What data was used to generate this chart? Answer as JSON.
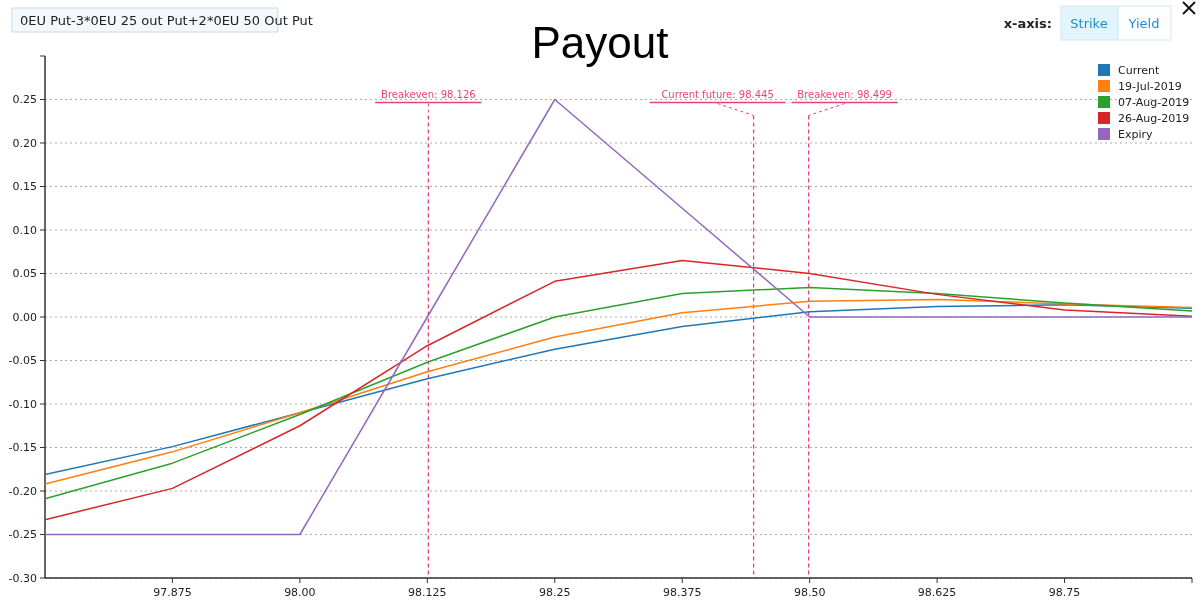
{
  "chart_data": {
    "type": "line",
    "title": "Payout",
    "x": [
      97.75,
      97.875,
      98.0,
      98.125,
      98.25,
      98.375,
      98.5,
      98.625,
      98.75,
      98.875
    ],
    "series": [
      {
        "name": "Current",
        "color": "#1f77b4",
        "values": [
          -0.181,
          -0.149,
          -0.11,
          -0.071,
          -0.037,
          -0.011,
          0.006,
          0.012,
          0.014,
          0.01
        ]
      },
      {
        "name": "19-Jul-2019",
        "color": "#ff7f0e",
        "values": [
          -0.192,
          -0.155,
          -0.11,
          -0.063,
          -0.023,
          0.005,
          0.018,
          0.02,
          0.015,
          0.011
        ]
      },
      {
        "name": "07-Aug-2019",
        "color": "#2ca02c",
        "values": [
          -0.209,
          -0.168,
          -0.112,
          -0.052,
          0.0,
          0.027,
          0.034,
          0.027,
          0.016,
          0.007
        ]
      },
      {
        "name": "26-Aug-2019",
        "color": "#d62728",
        "values": [
          -0.233,
          -0.197,
          -0.125,
          -0.033,
          0.041,
          0.065,
          0.05,
          0.026,
          0.008,
          0.001
        ]
      },
      {
        "name": "Expiry",
        "color": "#9467bd",
        "values": [
          -0.25,
          -0.25,
          -0.25,
          0.0,
          0.25,
          0.125,
          0.0,
          0.0,
          0.0,
          0.0
        ]
      }
    ],
    "xlim": [
      97.75,
      98.875
    ],
    "xticks": [
      {
        "value": 97.875,
        "label": "97.875"
      },
      {
        "value": 98.0,
        "label": "98.00"
      },
      {
        "value": 98.125,
        "label": "98.125"
      },
      {
        "value": 98.25,
        "label": "98.25"
      },
      {
        "value": 98.375,
        "label": "98.375"
      },
      {
        "value": 98.5,
        "label": "98.50"
      },
      {
        "value": 98.625,
        "label": "98.625"
      },
      {
        "value": 98.75,
        "label": "98.75"
      }
    ],
    "ylim": [
      -0.3,
      0.3
    ],
    "yticks": [
      {
        "value": -0.3,
        "label": "-0.30"
      },
      {
        "value": -0.25,
        "label": "-0.25"
      },
      {
        "value": -0.2,
        "label": "-0.20"
      },
      {
        "value": -0.15,
        "label": "-0.15"
      },
      {
        "value": -0.1,
        "label": "-0.10"
      },
      {
        "value": -0.05,
        "label": "-0.05"
      },
      {
        "value": 0,
        "label": "0.00"
      },
      {
        "value": 0.05,
        "label": "0.05"
      },
      {
        "value": 0.1,
        "label": "0.10"
      },
      {
        "value": 0.15,
        "label": "0.15"
      },
      {
        "value": 0.2,
        "label": "0.20"
      },
      {
        "value": 0.25,
        "label": "0.25"
      }
    ],
    "ref_lines": [
      {
        "axis": "x",
        "value": 98.126,
        "label": "Breakeven: 98.126",
        "color": "#f0407a",
        "line_style": "dashed"
      },
      {
        "axis": "x",
        "value": 98.445,
        "label": "Current future: 98.445",
        "color": "#f0407a",
        "line_style": "dashed"
      },
      {
        "axis": "x",
        "value": 98.499,
        "label": "Breakeven: 98.499",
        "color": "#f0407a",
        "line_style": "dashed"
      }
    ],
    "annotations": [
      "0EU Put-3*0EU 25 out Put+2*0EU 50 Out Put",
      "x-axis:",
      "Strike",
      "Yield"
    ],
    "grid": "y",
    "legend": "top right",
    "marker": "none",
    "line_style": "solid"
  }
}
